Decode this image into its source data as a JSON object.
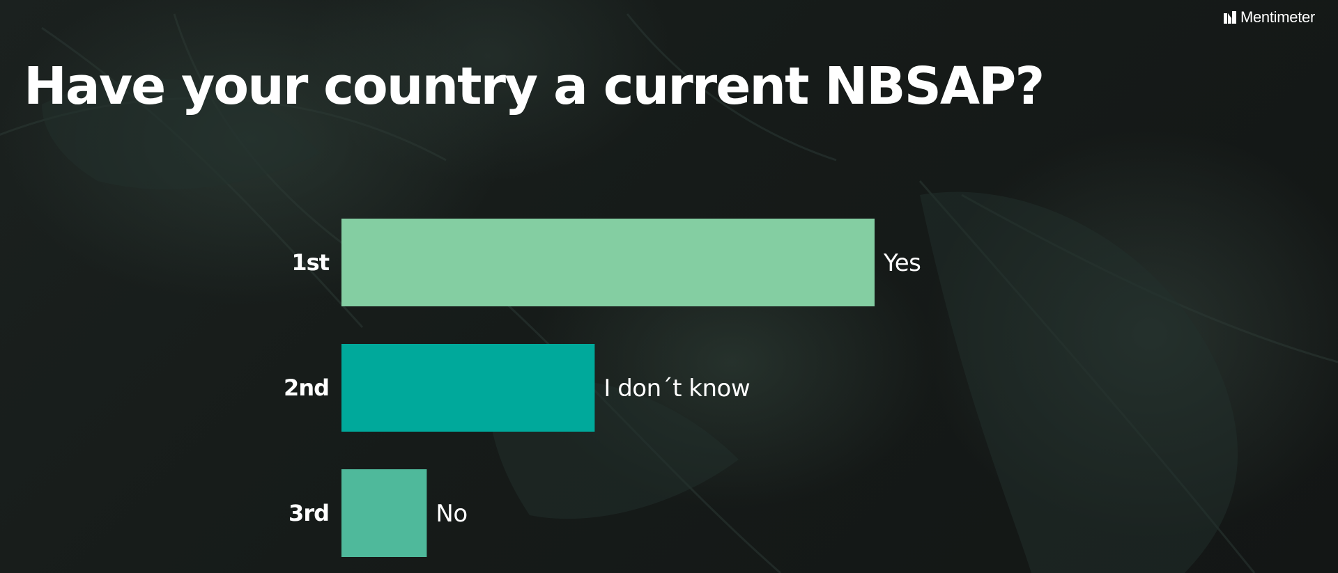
{
  "brand": {
    "name": "Mentimeter",
    "icon": "mentimeter-logo-icon"
  },
  "question": {
    "title": "Have your country a current NBSAP?"
  },
  "colors": {
    "background": "#141817",
    "text": "#ffffff",
    "bar_colors": [
      "#84cea2",
      "#00a99b",
      "#4fb99b"
    ]
  },
  "chart_data": {
    "type": "bar",
    "orientation": "horizontal",
    "ranks": [
      "1st",
      "2nd",
      "3rd"
    ],
    "categories": [
      "Yes",
      "I don´t know",
      "No"
    ],
    "values": [
      100,
      47.5,
      16
    ],
    "value_unit": "relative share of responses (%, estimated, no axis shown)",
    "title": "Have your country a current NBSAP?",
    "xlabel": "",
    "ylabel": "",
    "grid": false,
    "legend": "none"
  }
}
